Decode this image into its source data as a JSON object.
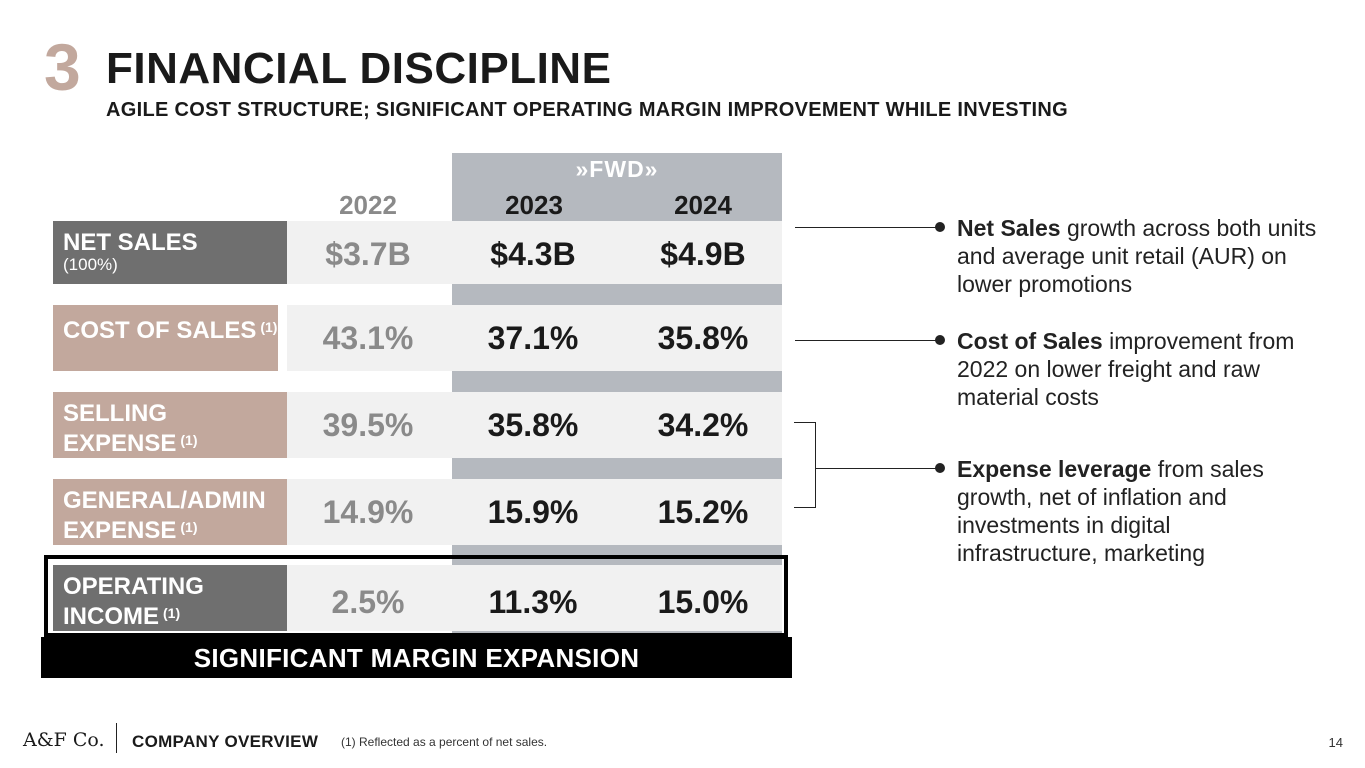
{
  "header": {
    "section_number": "3",
    "title": "FINANCIAL DISCIPLINE",
    "subtitle": "AGILE COST STRUCTURE; SIGNIFICANT OPERATING MARGIN IMPROVEMENT WHILE INVESTING"
  },
  "table": {
    "fwd_logo": "»FWD»",
    "years": [
      "2022",
      "2023",
      "2024"
    ],
    "rows": [
      {
        "label": "NET SALES",
        "sub": "(100%)",
        "values": [
          "$3.7B",
          "$4.3B",
          "$4.9B"
        ]
      },
      {
        "label": "COST OF SALES",
        "footnote": "(1)",
        "values": [
          "43.1%",
          "37.1%",
          "35.8%"
        ]
      },
      {
        "label": "SELLING EXPENSE",
        "footnote": "(1)",
        "values": [
          "39.5%",
          "35.8%",
          "34.2%"
        ]
      },
      {
        "label": "GENERAL/ADMIN EXPENSE",
        "footnote": "(1)",
        "values": [
          "14.9%",
          "15.9%",
          "15.2%"
        ]
      },
      {
        "label": "OPERATING INCOME",
        "footnote": "(1)",
        "values": [
          "2.5%",
          "11.3%",
          "15.0%"
        ]
      }
    ],
    "banner": "SIGNIFICANT MARGIN EXPANSION"
  },
  "notes": [
    {
      "bold": "Net Sales",
      "text": " growth across both units and average unit retail (AUR) on lower promotions"
    },
    {
      "bold": "Cost of Sales",
      "text": " improvement from 2022 on lower freight and raw material costs"
    },
    {
      "bold": "Expense leverage",
      "text": " from sales growth, net of inflation and investments in digital infrastructure, marketing"
    }
  ],
  "footer": {
    "logo": "A&F Co.",
    "section": "COMPANY OVERVIEW",
    "footnote": "(1) Reflected as a percent of net sales.",
    "page": "14"
  },
  "colors": {
    "accent_tan": "#c2a89d",
    "dark_gray": "#6f6f6f",
    "fwd_band": "#b5b9bf"
  }
}
